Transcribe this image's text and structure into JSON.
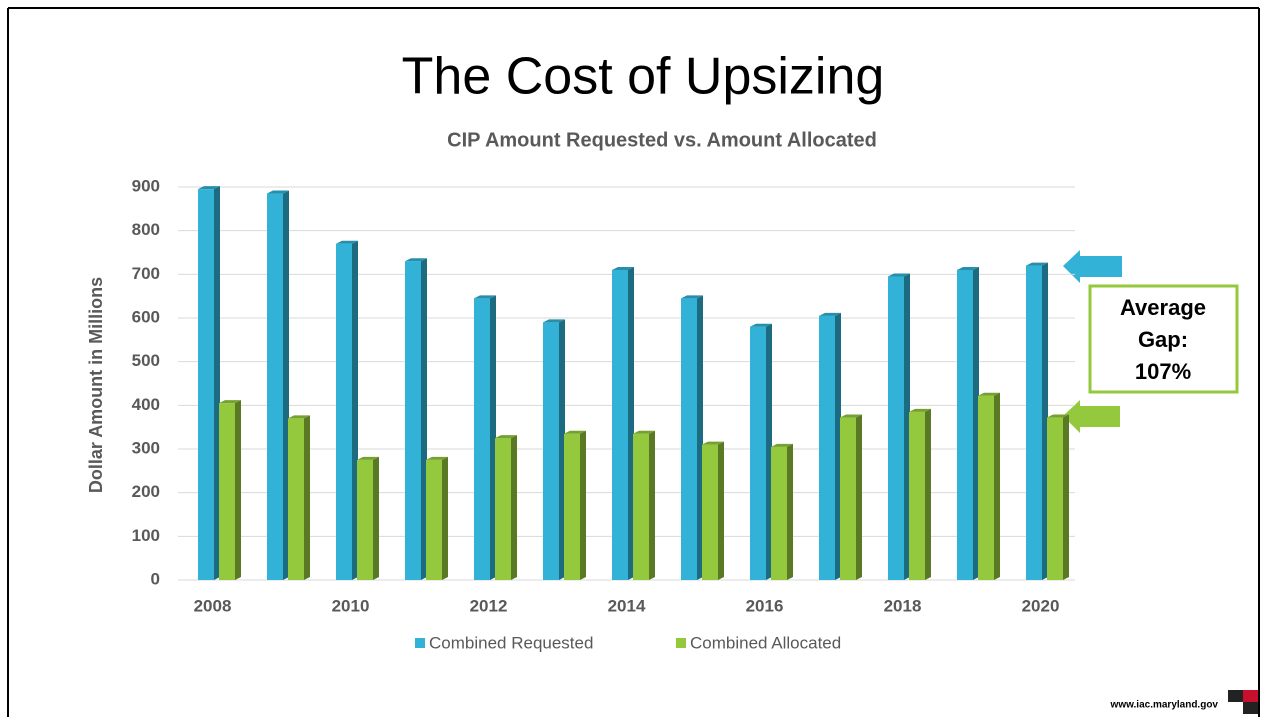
{
  "slide_title": "The Cost of Upsizing",
  "annotation": [
    "Average",
    "Gap:",
    "107%"
  ],
  "footer": "www.iac.maryland.gov",
  "chart_data": {
    "type": "bar3d",
    "title": "CIP Amount Requested vs. Amount Allocated",
    "y_label": "Dollar Amount in Millions",
    "categories": [
      "2008",
      null,
      "2010",
      null,
      "2012",
      null,
      "2014",
      null,
      "2016",
      null,
      "2018",
      null,
      "2020"
    ],
    "series": [
      {
        "name": "Combined Requested",
        "color": "#31b2d6",
        "values": [
          895,
          885,
          770,
          730,
          645,
          590,
          710,
          645,
          580,
          605,
          695,
          710,
          720
        ]
      },
      {
        "name": "Combined Allocated",
        "color": "#94c93d",
        "values": [
          405,
          370,
          275,
          275,
          325,
          335,
          335,
          310,
          305,
          372,
          385,
          422,
          372
        ]
      }
    ],
    "ylim": [
      0,
      900
    ],
    "yticks": [
      0,
      100,
      200,
      300,
      400,
      500,
      600,
      700,
      800,
      900
    ],
    "grid": true,
    "legend": "bottom"
  }
}
